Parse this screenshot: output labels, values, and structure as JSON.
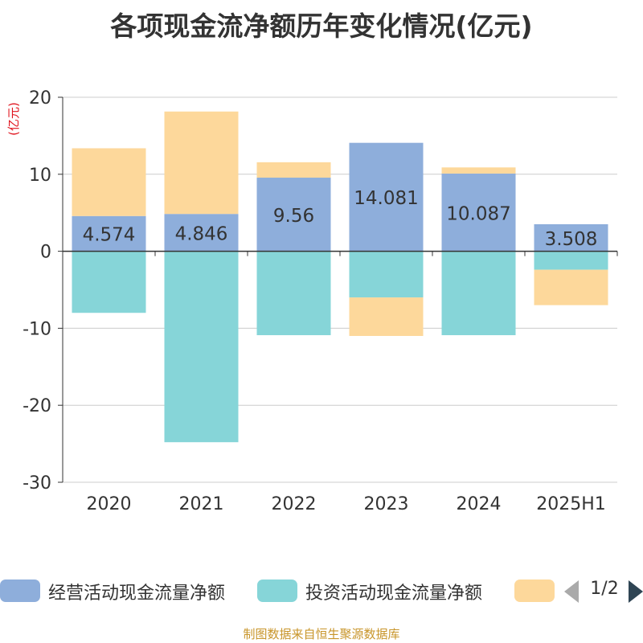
{
  "chart_data": {
    "type": "bar",
    "stacked": true,
    "title": "各项现金流净额历年变化情况(亿元)",
    "ylabel": "(亿元)",
    "ylim": [
      -30,
      20
    ],
    "yticks": [
      20,
      10,
      0,
      -10,
      -20,
      -30
    ],
    "grid": true,
    "legend_position": "bottom",
    "categories": [
      "2020",
      "2021",
      "2022",
      "2023",
      "2024",
      "2025H1"
    ],
    "series": [
      {
        "name": "经营活动现金流量净额",
        "color": "#8eaedb",
        "values": [
          4.574,
          4.846,
          9.56,
          14.081,
          10.087,
          3.508
        ],
        "show_labels": true
      },
      {
        "name": "投资活动现金流量净额",
        "color": "#86d5d8",
        "values": [
          -8,
          -24.8,
          -10.9,
          -6,
          -10.9,
          -2.4
        ],
        "show_labels": false
      },
      {
        "name": "",
        "color": "#fdd89b",
        "values": [
          8.8,
          13.3,
          2,
          -5,
          0.8,
          -4.6
        ],
        "show_labels": false
      }
    ]
  },
  "legend": {
    "pager": "1/2"
  },
  "source": "制图数据来自恒生聚源数据库"
}
